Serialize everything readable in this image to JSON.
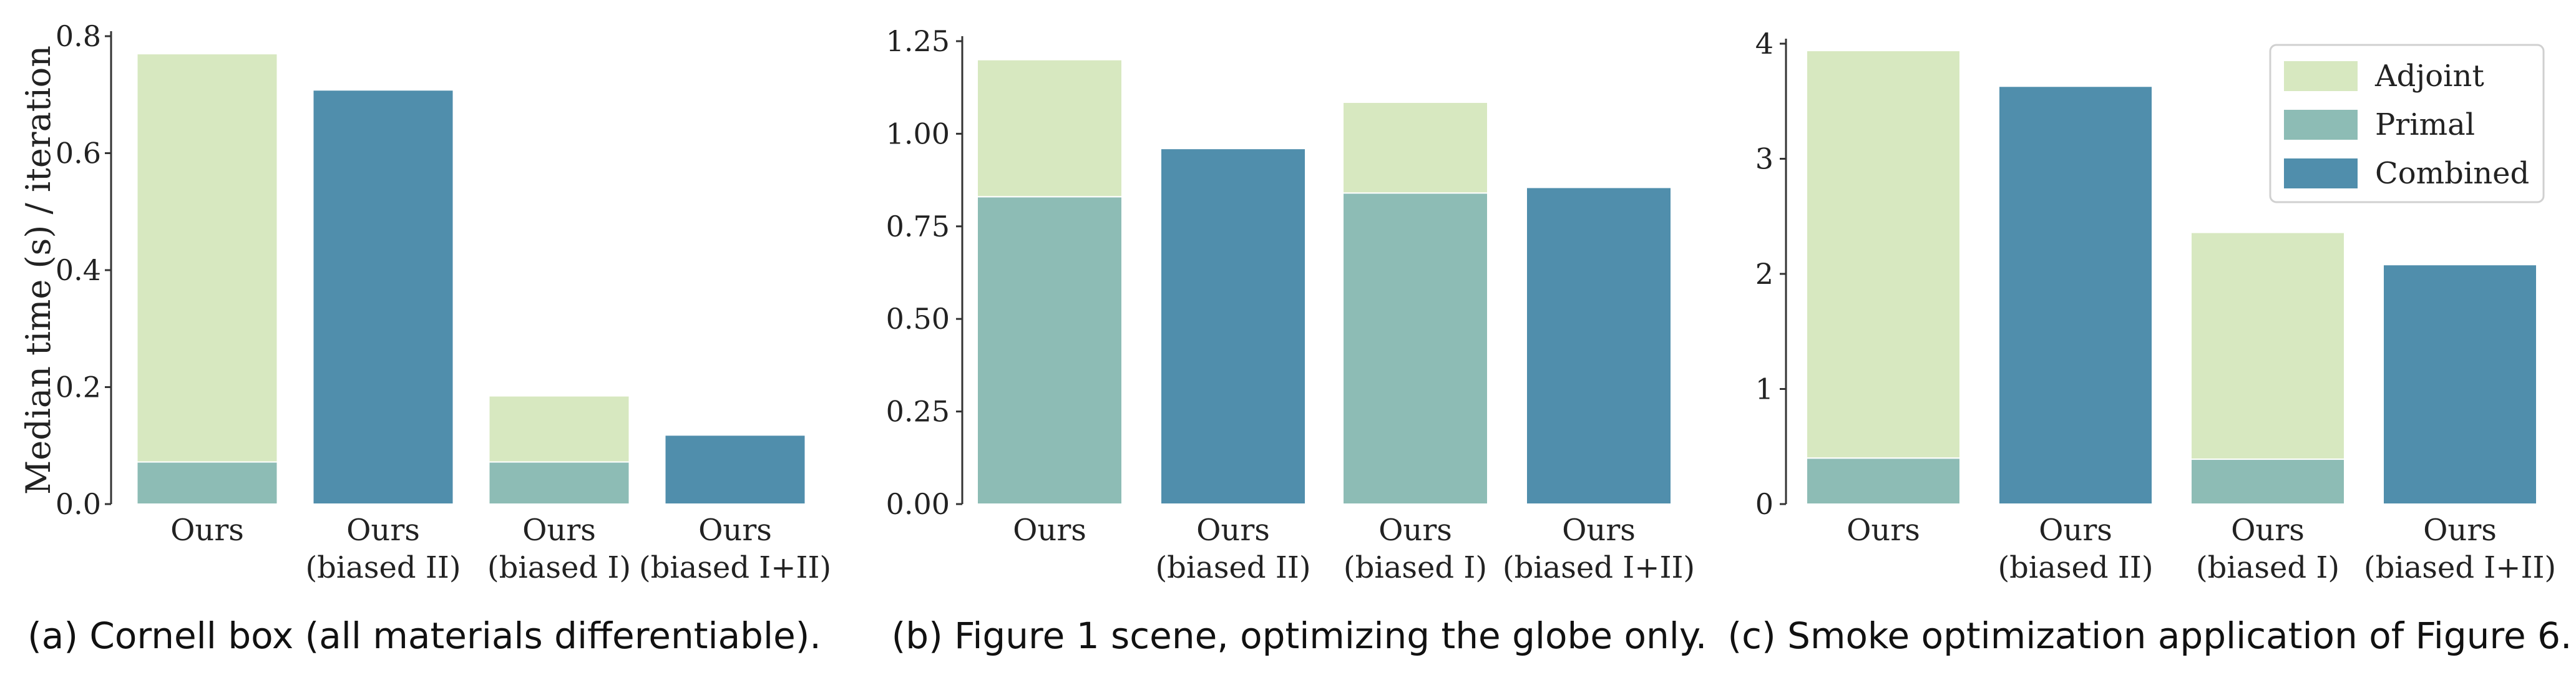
{
  "colors": {
    "adjoint": "#d7e8c0",
    "primal": "#8dbcb5",
    "combined": "#508eac",
    "axis": "#333333"
  },
  "legend": {
    "placement": "top-right",
    "labels": [
      "Adjoint",
      "Primal",
      "Combined"
    ]
  },
  "chart_data": [
    {
      "type": "bar",
      "stacked": true,
      "caption": "(a) Cornell box (all materials differentiable).",
      "ylabel": "Median time (s) / iteration",
      "ylim": [
        0,
        0.8
      ],
      "yticks": [
        "0.0",
        "0.2",
        "0.4",
        "0.6",
        "0.8"
      ],
      "categories": [
        [
          "Ours"
        ],
        [
          "Ours",
          "(biased II)"
        ],
        [
          "Ours",
          "(biased I)"
        ],
        [
          "Ours",
          "(biased I+II)"
        ]
      ],
      "series": [
        {
          "name": "Primal",
          "values": [
            0.072,
            0,
            0.072,
            0
          ]
        },
        {
          "name": "Adjoint",
          "values": [
            0.698,
            0,
            0.113,
            0
          ]
        },
        {
          "name": "Combined",
          "values": [
            0,
            0.708,
            0,
            0.118
          ]
        }
      ]
    },
    {
      "type": "bar",
      "stacked": true,
      "caption": "(b) Figure 1 scene, optimizing the globe only.",
      "ylabel": "",
      "ylim": [
        0,
        1.25
      ],
      "yticks": [
        "0.00",
        "0.25",
        "0.50",
        "0.75",
        "1.00",
        "1.25"
      ],
      "categories": [
        [
          "Ours"
        ],
        [
          "Ours",
          "(biased II)"
        ],
        [
          "Ours",
          "(biased I)"
        ],
        [
          "Ours",
          "(biased I+II)"
        ]
      ],
      "series": [
        {
          "name": "Primal",
          "values": [
            0.83,
            0,
            0.84,
            0
          ]
        },
        {
          "name": "Adjoint",
          "values": [
            0.37,
            0,
            0.245,
            0
          ]
        },
        {
          "name": "Combined",
          "values": [
            0,
            0.96,
            0,
            0.855
          ]
        }
      ]
    },
    {
      "type": "bar",
      "stacked": true,
      "caption": "(c) Smoke optimization application of Figure 6.",
      "ylabel": "",
      "ylim": [
        0,
        4
      ],
      "yticks": [
        "0",
        "1",
        "2",
        "3",
        "4"
      ],
      "legend": [
        "Adjoint",
        "Primal",
        "Combined"
      ],
      "categories": [
        [
          "Ours"
        ],
        [
          "Ours",
          "(biased II)"
        ],
        [
          "Ours",
          "(biased I)"
        ],
        [
          "Ours",
          "(biased I+II)"
        ]
      ],
      "series": [
        {
          "name": "Primal",
          "values": [
            0.4,
            0,
            0.39,
            0
          ]
        },
        {
          "name": "Adjoint",
          "values": [
            3.54,
            0,
            1.97,
            0
          ]
        },
        {
          "name": "Combined",
          "values": [
            0,
            3.63,
            0,
            2.08
          ]
        }
      ]
    }
  ]
}
